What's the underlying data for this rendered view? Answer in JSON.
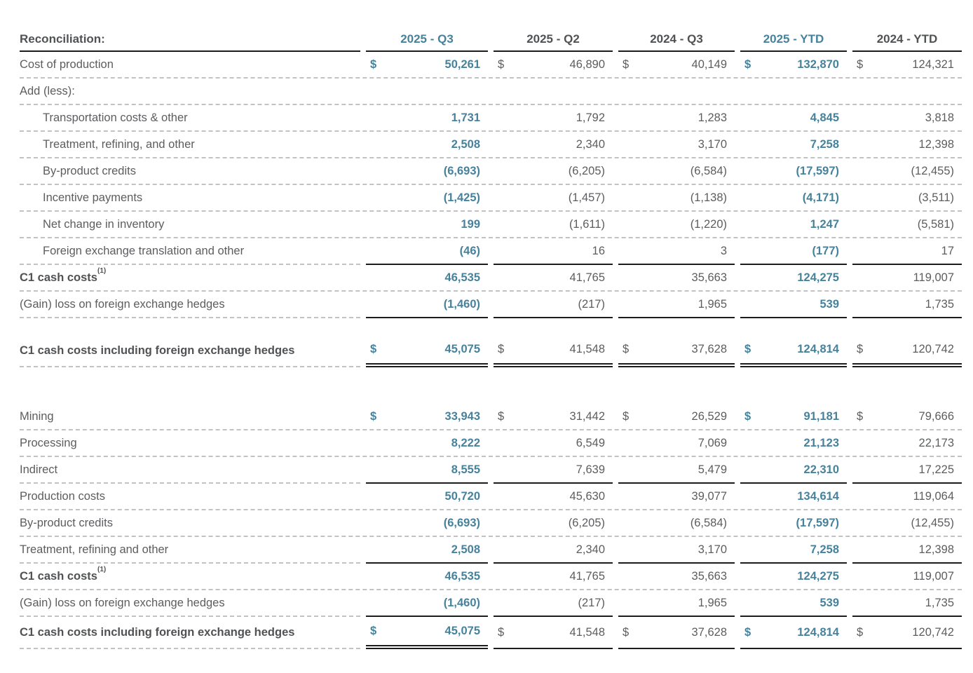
{
  "colors": {
    "accent": "#47829C",
    "text": "#5C5D5F",
    "heading": "#515254",
    "rule": "#1C1C1C",
    "dashed": "#C2C2C2"
  },
  "table": {
    "header_label": "Reconciliation:",
    "footnote_marker": "(1)",
    "columns": [
      {
        "label": "2025 - Q3",
        "accent": true
      },
      {
        "label": "2025 - Q2",
        "accent": false
      },
      {
        "label": "2024 - Q3",
        "accent": false
      },
      {
        "label": "2025 - YTD",
        "accent": true
      },
      {
        "label": "2024 - YTD",
        "accent": false
      }
    ],
    "sections": [
      {
        "name": "cost-reconciliation",
        "rows": [
          {
            "label": "Cost of production",
            "dollar": true,
            "border": "dashed",
            "values": [
              "50,261",
              "46,890",
              "40,149",
              "132,870",
              "124,321"
            ]
          },
          {
            "label": "Add (less):",
            "border": "dashed",
            "values": [
              "",
              "",
              "",
              "",
              ""
            ]
          },
          {
            "label": "Transportation costs & other",
            "indent": true,
            "border": "dashed",
            "values": [
              "1,731",
              "1,792",
              "1,283",
              "4,845",
              "3,818"
            ]
          },
          {
            "label": "Treatment, refining, and other",
            "indent": true,
            "border": "dashed",
            "values": [
              "2,508",
              "2,340",
              "3,170",
              "7,258",
              "12,398"
            ]
          },
          {
            "label": "By-product credits",
            "indent": true,
            "border": "dashed",
            "values": [
              "(6,693)",
              "(6,205)",
              "(6,584)",
              "(17,597)",
              "(12,455)"
            ]
          },
          {
            "label": "Incentive payments",
            "indent": true,
            "border": "dashed",
            "values": [
              "(1,425)",
              "(1,457)",
              "(1,138)",
              "(4,171)",
              "(3,511)"
            ]
          },
          {
            "label": "Net change in inventory",
            "indent": true,
            "border": "dashed",
            "values": [
              "199",
              "(1,611)",
              "(1,220)",
              "1,247",
              "(5,581)"
            ]
          },
          {
            "label": "Foreign exchange translation and other",
            "indent": true,
            "border": "subtotal",
            "values": [
              "(46)",
              "16",
              "3",
              "(177)",
              "17"
            ]
          },
          {
            "label": "C1 cash costs",
            "sup": true,
            "bold": true,
            "border": "dashed",
            "values": [
              "46,535",
              "41,765",
              "35,663",
              "124,275",
              "119,007"
            ]
          },
          {
            "label": "(Gain) loss on foreign exchange hedges",
            "border": "subtotal",
            "values": [
              "(1,460)",
              "(217)",
              "1,965",
              "539",
              "1,735"
            ]
          },
          {
            "label": "C1 cash costs including foreign exchange hedges",
            "bold": true,
            "dollar": true,
            "border": "double",
            "spacer_before": true,
            "values": [
              "45,075",
              "41,548",
              "37,628",
              "124,814",
              "120,742"
            ]
          }
        ]
      },
      {
        "name": "cost-components",
        "rows": [
          {
            "label": "Mining",
            "dollar": true,
            "border": "dashed",
            "values": [
              "33,943",
              "31,442",
              "26,529",
              "91,181",
              "79,666"
            ]
          },
          {
            "label": "Processing",
            "border": "dashed",
            "values": [
              "8,222",
              "6,549",
              "7,069",
              "21,123",
              "22,173"
            ]
          },
          {
            "label": "Indirect",
            "border": "subtotal",
            "values": [
              "8,555",
              "7,639",
              "5,479",
              "22,310",
              "17,225"
            ]
          },
          {
            "label": "Production costs",
            "border": "dashed",
            "values": [
              "50,720",
              "45,630",
              "39,077",
              "134,614",
              "119,064"
            ]
          },
          {
            "label": "By-product credits",
            "border": "dashed",
            "values": [
              "(6,693)",
              "(6,205)",
              "(6,584)",
              "(17,597)",
              "(12,455)"
            ]
          },
          {
            "label": "Treatment, refining and other",
            "border": "subtotal",
            "values": [
              "2,508",
              "2,340",
              "3,170",
              "7,258",
              "12,398"
            ]
          },
          {
            "label": "C1 cash costs",
            "sup": true,
            "bold": true,
            "border": "dashed",
            "values": [
              "46,535",
              "41,765",
              "35,663",
              "124,275",
              "119,007"
            ]
          },
          {
            "label": "(Gain) loss on foreign exchange hedges",
            "border": "subtotal",
            "values": [
              "(1,460)",
              "(217)",
              "1,965",
              "539",
              "1,735"
            ]
          },
          {
            "label": "C1 cash costs including foreign exchange hedges",
            "bold": true,
            "dollar": true,
            "border": "final",
            "values": [
              "45,075",
              "41,548",
              "37,628",
              "124,814",
              "120,742"
            ]
          }
        ]
      }
    ]
  }
}
